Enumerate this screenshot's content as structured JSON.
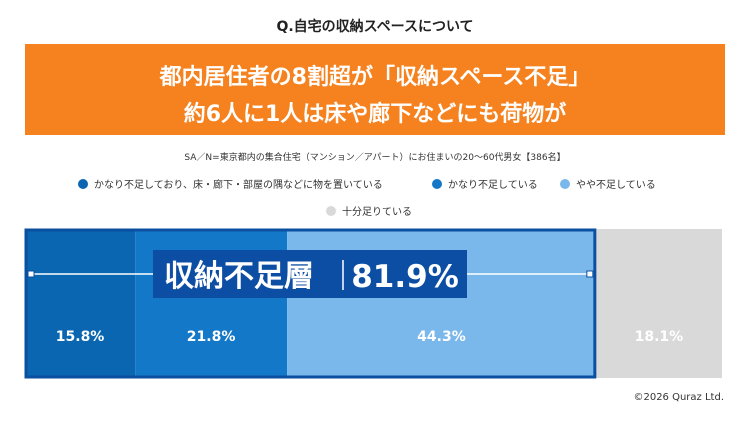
{
  "question": "Q.自宅の収納スペースについて",
  "headline": {
    "line1": "都内居住者の8割超が「収納スペース不足」",
    "line2": "約6人に1人は床や廊下などにも荷物が"
  },
  "note": "SA／N=東京都内の集合住宅（マンション／アパート）にお住まいの20～60代男女【386名】",
  "legend": [
    {
      "label": "かなり不足しており、床・廊下・部屋の隅などに物を置いている",
      "color": "#0a66b0"
    },
    {
      "label": "かなり不足している",
      "color": "#1478c8"
    },
    {
      "label": "やや不足している",
      "color": "#7ab8ec"
    },
    {
      "label": "十分足りている",
      "color": "#d9d9d9"
    }
  ],
  "highlight": {
    "label": "収納不足層",
    "value": "81.9%"
  },
  "chart_data": {
    "type": "bar",
    "orientation": "horizontal-stacked-100",
    "categories": [
      ""
    ],
    "series": [
      {
        "name": "かなり不足しており、床・廊下・部屋の隅などに物を置いている",
        "values": [
          15.8
        ],
        "label": "15.8%",
        "color": "#0a66b0"
      },
      {
        "name": "かなり不足している",
        "values": [
          21.8
        ],
        "label": "21.8%",
        "color": "#1478c8"
      },
      {
        "name": "やや不足している",
        "values": [
          44.3
        ],
        "label": "44.3%",
        "color": "#7ab8ec"
      },
      {
        "name": "十分足りている",
        "values": [
          18.1
        ],
        "label": "18.1%",
        "color": "#d9d9d9"
      }
    ],
    "xlim": [
      0,
      100
    ],
    "grid": false
  },
  "copyright": "©2026 Quraz Ltd."
}
